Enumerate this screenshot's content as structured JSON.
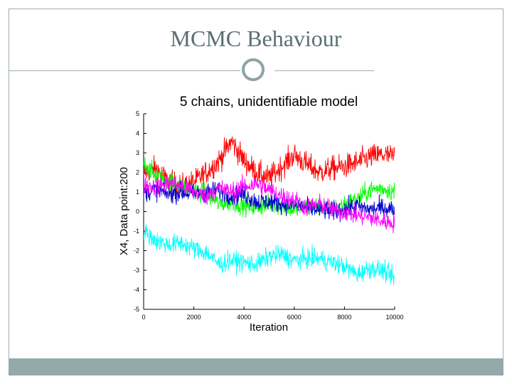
{
  "slide": {
    "title": "MCMC Behaviour",
    "colors": {
      "frame": "#9aaeb2",
      "footer": "#93a9aa",
      "title": "#5b6f73"
    }
  },
  "chart_data": {
    "type": "line",
    "title": "5 chains, unidentifiable model",
    "xlabel": "Iteration",
    "ylabel": "X4, Data point:200",
    "xlim": [
      0,
      10000
    ],
    "ylim": [
      -5,
      5
    ],
    "xticks": [
      "0",
      "2000",
      "4000",
      "6000",
      "8000",
      "10000"
    ],
    "yticks": [
      "5",
      "4",
      "3",
      "2",
      "1",
      "0",
      "-1",
      "-2",
      "-3",
      "-4",
      "-5"
    ],
    "grid": false,
    "legend": "none",
    "series": [
      {
        "color": "#ff0000",
        "x": [
          0,
          500,
          1000,
          1500,
          2000,
          2500,
          3000,
          3500,
          4000,
          4500,
          5000,
          5500,
          6000,
          6500,
          7000,
          7500,
          8000,
          8500,
          9000,
          9500,
          10000
        ],
        "values": [
          2.0,
          2.2,
          1.5,
          1.3,
          1.5,
          2.0,
          2.6,
          3.6,
          2.6,
          2.0,
          1.7,
          2.3,
          2.9,
          2.4,
          2.0,
          2.2,
          2.3,
          2.5,
          2.8,
          2.9,
          2.8
        ]
      },
      {
        "color": "#00ff00",
        "x": [
          0,
          500,
          1000,
          1500,
          2000,
          2500,
          3000,
          3500,
          4000,
          4500,
          5000,
          5500,
          6000,
          6500,
          7000,
          7500,
          8000,
          8500,
          9000,
          9500,
          10000
        ],
        "values": [
          2.5,
          1.8,
          1.6,
          1.3,
          1.1,
          0.9,
          0.4,
          0.5,
          0.3,
          0.2,
          0.4,
          0.3,
          0.1,
          0.2,
          0.3,
          0.1,
          0.4,
          0.6,
          1.1,
          1.2,
          1.0
        ]
      },
      {
        "color": "#0000cc",
        "x": [
          0,
          500,
          1000,
          1500,
          2000,
          2500,
          3000,
          3500,
          4000,
          4500,
          5000,
          5500,
          6000,
          6500,
          7000,
          7500,
          8000,
          8500,
          9000,
          9500,
          10000
        ],
        "values": [
          1.0,
          1.1,
          0.9,
          1.0,
          0.9,
          1.0,
          1.1,
          0.8,
          0.9,
          0.5,
          0.5,
          0.4,
          0.3,
          0.2,
          0.1,
          0.0,
          0.1,
          0.3,
          0.1,
          0.2,
          0.1
        ]
      },
      {
        "color": "#ff00ff",
        "x": [
          0,
          500,
          1000,
          1500,
          2000,
          2500,
          3000,
          3500,
          4000,
          4500,
          5000,
          5500,
          6000,
          6500,
          7000,
          7500,
          8000,
          8500,
          9000,
          9500,
          10000
        ],
        "values": [
          1.4,
          1.2,
          1.5,
          1.3,
          1.0,
          0.8,
          1.2,
          1.0,
          1.3,
          1.4,
          1.1,
          0.8,
          0.6,
          0.2,
          0.4,
          0.1,
          0.0,
          -0.2,
          -0.3,
          -0.5,
          -0.6
        ]
      },
      {
        "color": "#00ffff",
        "x": [
          0,
          500,
          1000,
          1500,
          2000,
          2500,
          3000,
          3500,
          4000,
          4500,
          5000,
          5500,
          6000,
          6500,
          7000,
          7500,
          8000,
          8500,
          9000,
          9500,
          10000
        ],
        "values": [
          -1.0,
          -1.5,
          -1.7,
          -1.6,
          -1.9,
          -2.1,
          -2.7,
          -2.5,
          -2.6,
          -2.7,
          -2.3,
          -2.2,
          -2.5,
          -2.4,
          -2.4,
          -2.6,
          -2.8,
          -3.2,
          -2.9,
          -3.0,
          -3.4
        ]
      }
    ]
  }
}
